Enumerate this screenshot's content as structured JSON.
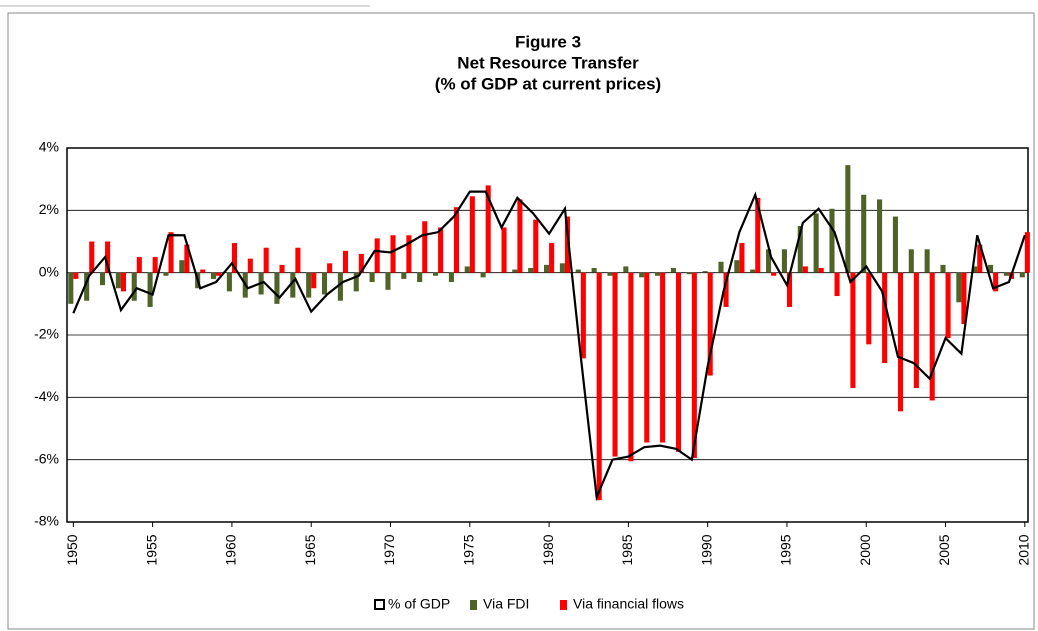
{
  "chart_data": {
    "type": "bar-line",
    "title": [
      "Figure 3",
      "Net Resource Transfer",
      "(% of GDP at current prices)"
    ],
    "x": [
      1950,
      1951,
      1952,
      1953,
      1954,
      1955,
      1956,
      1957,
      1958,
      1959,
      1960,
      1961,
      1962,
      1963,
      1964,
      1965,
      1966,
      1967,
      1968,
      1969,
      1970,
      1971,
      1972,
      1973,
      1974,
      1975,
      1976,
      1977,
      1978,
      1979,
      1980,
      1981,
      1982,
      1983,
      1984,
      1985,
      1986,
      1987,
      1988,
      1989,
      1990,
      1991,
      1992,
      1993,
      1994,
      1995,
      1996,
      1997,
      1998,
      1999,
      2000,
      2001,
      2002,
      2003,
      2004,
      2005,
      2006,
      2007,
      2008,
      2009,
      2010
    ],
    "xlim": [
      1949.6,
      2010.2
    ],
    "xticks": [
      1950,
      1955,
      1960,
      1965,
      1970,
      1975,
      1980,
      1985,
      1990,
      1995,
      2000,
      2005,
      2010
    ],
    "ylim": [
      -8,
      4
    ],
    "yticks": [
      {
        "value": -8,
        "label": "-8%"
      },
      {
        "value": -6,
        "label": "-6%"
      },
      {
        "value": -4,
        "label": "-4%"
      },
      {
        "value": -2,
        "label": "-2%"
      },
      {
        "value": 0,
        "label": "0%"
      },
      {
        "value": 2,
        "label": "2%"
      },
      {
        "value": 4,
        "label": "4%"
      }
    ],
    "grid": true,
    "legend": "bottom",
    "series": [
      {
        "name": "% of GDP",
        "kind": "line",
        "color": "#000000",
        "values": [
          -1.3,
          -0.1,
          0.5,
          -1.2,
          -0.5,
          -0.7,
          1.2,
          1.2,
          -0.5,
          -0.3,
          0.3,
          -0.5,
          -0.3,
          -0.8,
          -0.2,
          -1.25,
          -0.7,
          -0.3,
          -0.1,
          0.7,
          0.65,
          0.9,
          1.2,
          1.3,
          1.8,
          2.6,
          2.6,
          1.45,
          2.4,
          1.9,
          1.25,
          2.05,
          -2.7,
          -7.2,
          -6.0,
          -5.9,
          -5.6,
          -5.55,
          -5.65,
          -6.0,
          -3.0,
          -0.6,
          1.3,
          2.5,
          0.5,
          -0.4,
          1.6,
          2.05,
          1.3,
          -0.3,
          0.2,
          -0.6,
          -2.7,
          -2.9,
          -3.4,
          -2.1,
          -2.6,
          1.2,
          -0.5,
          -0.3,
          1.2
        ]
      },
      {
        "name": "Via FDI",
        "kind": "bar",
        "color": "#4f6228",
        "values": [
          -1.0,
          -0.9,
          -0.4,
          -0.5,
          -0.9,
          -1.1,
          -0.1,
          0.4,
          -0.5,
          -0.2,
          -0.6,
          -0.8,
          -0.7,
          -1.0,
          -0.8,
          -0.8,
          -0.7,
          -0.9,
          -0.6,
          -0.3,
          -0.55,
          -0.2,
          -0.3,
          -0.1,
          -0.3,
          0.2,
          -0.15,
          0,
          0.1,
          0.15,
          0.25,
          0.3,
          0.1,
          0.15,
          -0.1,
          0.2,
          -0.15,
          -0.1,
          0.15,
          -0.05,
          0.05,
          0.35,
          0.4,
          0.1,
          0.75,
          0.75,
          1.5,
          1.9,
          2.05,
          3.45,
          2.5,
          2.35,
          1.8,
          0.75,
          0.75,
          0.25,
          -0.95,
          0.2,
          0.25,
          -0.1,
          -0.15
        ]
      },
      {
        "name": "Via financial flows",
        "kind": "bar",
        "color": "#ff0000",
        "values": [
          -0.2,
          1.0,
          1.0,
          -0.6,
          0.5,
          0.5,
          1.3,
          0.9,
          0.1,
          -0.1,
          0.95,
          0.45,
          0.8,
          0.25,
          0.8,
          -0.5,
          0.3,
          0.7,
          0.6,
          1.1,
          1.2,
          1.2,
          1.65,
          1.45,
          2.1,
          2.45,
          2.8,
          1.45,
          2.35,
          1.7,
          0.95,
          1.8,
          -2.75,
          -7.3,
          -5.9,
          -6.05,
          -5.45,
          -5.45,
          -5.75,
          -5.95,
          -3.3,
          -1.1,
          0.95,
          2.4,
          -0.1,
          -1.1,
          0.2,
          0.15,
          -0.75,
          -3.7,
          -2.3,
          -2.9,
          -4.45,
          -3.7,
          -4.1,
          -2.1,
          -1.65,
          0.9,
          -0.6,
          -0.2,
          1.3
        ]
      }
    ]
  }
}
